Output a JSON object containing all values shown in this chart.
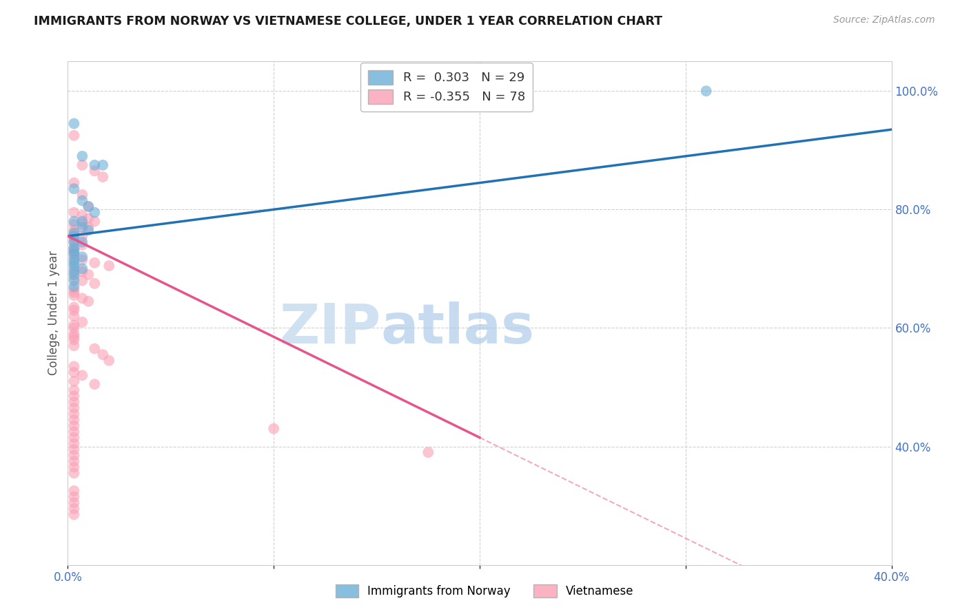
{
  "title": "IMMIGRANTS FROM NORWAY VS VIETNAMESE COLLEGE, UNDER 1 YEAR CORRELATION CHART",
  "source_text": "Source: ZipAtlas.com",
  "ylabel": "College, Under 1 year",
  "xlim": [
    0.0,
    0.4
  ],
  "ylim": [
    0.2,
    1.05
  ],
  "y_tick_labels_right": [
    "100.0%",
    "80.0%",
    "60.0%",
    "40.0%"
  ],
  "y_tick_positions_right": [
    1.0,
    0.8,
    0.6,
    0.4
  ],
  "norway_R": 0.303,
  "norway_N": 29,
  "vietnamese_R": -0.355,
  "vietnamese_N": 78,
  "norway_color": "#6baed6",
  "vietnamese_color": "#fa9fb5",
  "norway_line_color": "#2171b5",
  "vietnamese_line_color": "#e8538a",
  "watermark_zip": "ZIP",
  "watermark_atlas": "atlas",
  "norway_line_x0": 0.0,
  "norway_line_y0": 0.755,
  "norway_line_x1": 0.4,
  "norway_line_y1": 0.935,
  "viet_line_x0": 0.0,
  "viet_line_y0": 0.755,
  "viet_line_x1": 0.2,
  "viet_line_y1": 0.415,
  "viet_line_solid_end": 0.2,
  "norway_points_x": [
    0.003,
    0.007,
    0.013,
    0.017,
    0.003,
    0.007,
    0.01,
    0.013,
    0.003,
    0.007,
    0.007,
    0.01,
    0.003,
    0.003,
    0.003,
    0.007,
    0.003,
    0.003,
    0.003,
    0.007,
    0.003,
    0.003,
    0.003,
    0.007,
    0.003,
    0.003,
    0.003,
    0.003,
    0.31
  ],
  "norway_points_y": [
    0.945,
    0.89,
    0.875,
    0.875,
    0.835,
    0.815,
    0.805,
    0.795,
    0.78,
    0.78,
    0.77,
    0.765,
    0.76,
    0.755,
    0.745,
    0.745,
    0.735,
    0.73,
    0.725,
    0.72,
    0.715,
    0.71,
    0.705,
    0.7,
    0.695,
    0.69,
    0.68,
    0.67,
    1.0
  ],
  "vietnamese_points_x": [
    0.003,
    0.007,
    0.013,
    0.017,
    0.003,
    0.007,
    0.01,
    0.003,
    0.007,
    0.01,
    0.013,
    0.003,
    0.007,
    0.01,
    0.003,
    0.003,
    0.007,
    0.003,
    0.003,
    0.007,
    0.003,
    0.003,
    0.003,
    0.003,
    0.007,
    0.013,
    0.02,
    0.003,
    0.007,
    0.01,
    0.003,
    0.007,
    0.013,
    0.003,
    0.003,
    0.003,
    0.007,
    0.01,
    0.003,
    0.003,
    0.003,
    0.007,
    0.003,
    0.003,
    0.003,
    0.003,
    0.003,
    0.003,
    0.013,
    0.017,
    0.02,
    0.003,
    0.003,
    0.007,
    0.003,
    0.013,
    0.003,
    0.003,
    0.003,
    0.003,
    0.003,
    0.003,
    0.003,
    0.003,
    0.003,
    0.003,
    0.003,
    0.003,
    0.003,
    0.003,
    0.003,
    0.003,
    0.003,
    0.003,
    0.003,
    0.003,
    0.1,
    0.175
  ],
  "vietnamese_points_y": [
    0.925,
    0.875,
    0.865,
    0.855,
    0.845,
    0.825,
    0.805,
    0.795,
    0.79,
    0.785,
    0.78,
    0.775,
    0.775,
    0.77,
    0.765,
    0.76,
    0.755,
    0.75,
    0.745,
    0.74,
    0.735,
    0.73,
    0.725,
    0.72,
    0.715,
    0.71,
    0.705,
    0.7,
    0.695,
    0.69,
    0.685,
    0.68,
    0.675,
    0.665,
    0.66,
    0.655,
    0.65,
    0.645,
    0.635,
    0.63,
    0.62,
    0.61,
    0.605,
    0.6,
    0.59,
    0.585,
    0.58,
    0.57,
    0.565,
    0.555,
    0.545,
    0.535,
    0.525,
    0.52,
    0.51,
    0.505,
    0.495,
    0.485,
    0.475,
    0.465,
    0.455,
    0.445,
    0.435,
    0.425,
    0.415,
    0.405,
    0.395,
    0.385,
    0.375,
    0.365,
    0.355,
    0.325,
    0.315,
    0.305,
    0.295,
    0.285,
    0.43,
    0.39
  ],
  "background_color": "#ffffff",
  "grid_color": "#d0d0d0"
}
